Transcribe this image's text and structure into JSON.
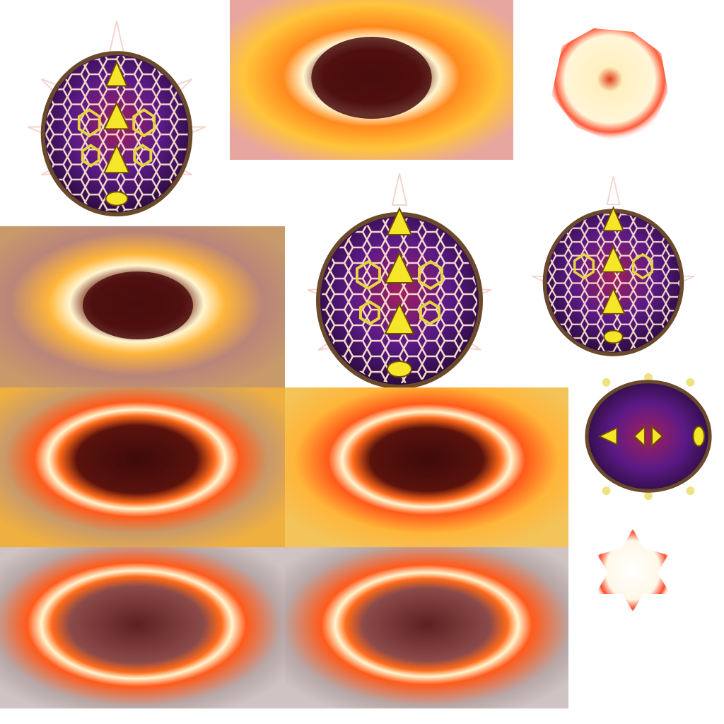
{
  "sheet": {
    "background": "#ffffff",
    "description_free": true
  },
  "palette": {
    "egg_purple": "#5b1a86",
    "egg_dark": "#2a0c3e",
    "egg_magenta": "#a0205c",
    "egg_yellow": "#f5e62a",
    "egg_rim": "#6a4a2a",
    "fire_core": "#4a0e0e",
    "fire_orange": "#ff7a1a",
    "fire_yellow": "#ffd23a",
    "fire_white": "#fff6d0",
    "haze_grey": "#b8a8a8"
  },
  "sprites": {
    "eggs": [
      "egg-front-large",
      "egg-front-medium",
      "egg-front-small",
      "egg-top-view"
    ],
    "bursts": [
      "burst-sunburst",
      "burst-flare"
    ],
    "rings": [
      "fire-ring-bright",
      "fire-ring-warm",
      "fire-ring-haze",
      "fire-ring-haze-2"
    ],
    "puffs": [
      "glow-puff-large",
      "glow-puff-small"
    ]
  }
}
